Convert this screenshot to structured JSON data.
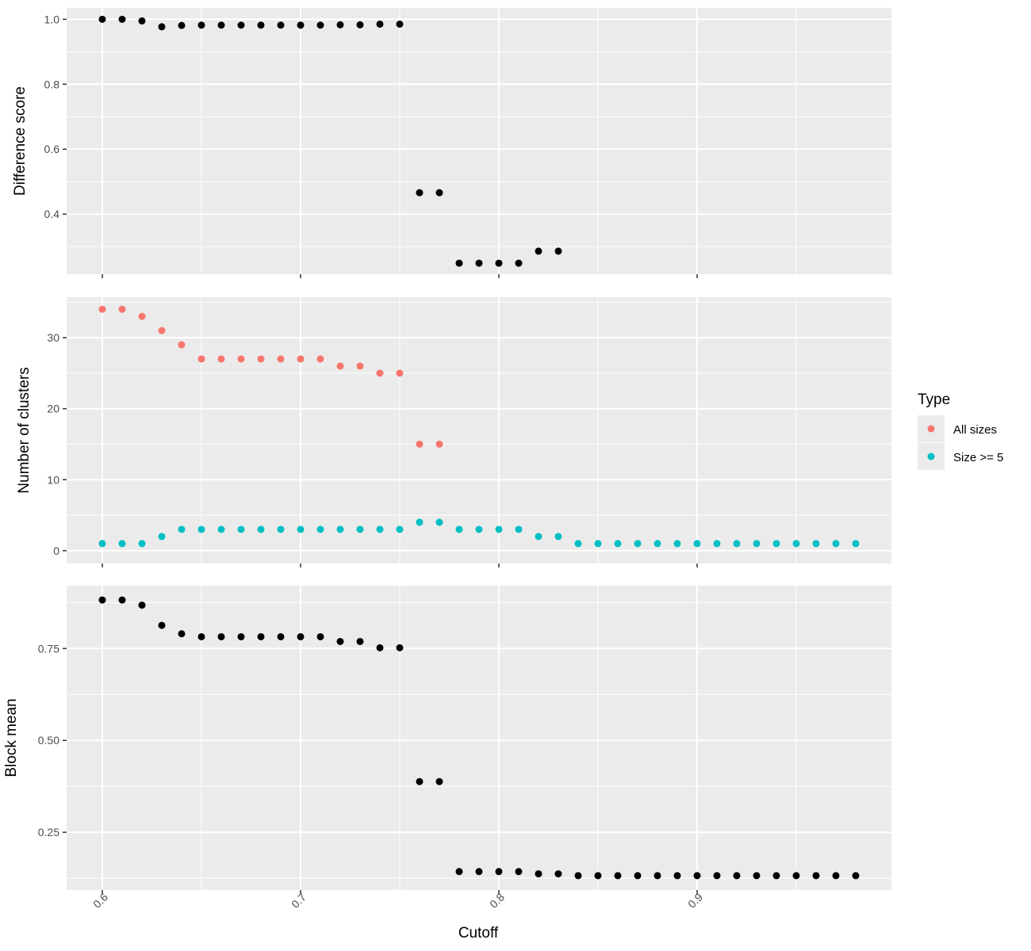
{
  "chart_data": {
    "type": "scatter",
    "xlabel": "Cutoff",
    "x_ticks": [
      0.6,
      0.7,
      0.8,
      0.9
    ],
    "x_tick_labels": [
      "0.6",
      "0.7",
      "0.8",
      "0.9"
    ],
    "xlim": [
      0.582,
      0.998
    ],
    "panels": [
      {
        "id": "difference",
        "ylabel": "Difference score",
        "ylim": [
          0.215,
          1.035
        ],
        "y_ticks": [
          0.4,
          0.6,
          0.8,
          1.0
        ],
        "y_tick_labels": [
          "0.4",
          "0.6",
          "0.8",
          "1.0"
        ],
        "series": [
          {
            "color": "#000000",
            "x": [
              0.6,
              0.61,
              0.62,
              0.63,
              0.64,
              0.65,
              0.66,
              0.67,
              0.68,
              0.69,
              0.7,
              0.71,
              0.72,
              0.73,
              0.74,
              0.75,
              0.76,
              0.77,
              0.78,
              0.79,
              0.8,
              0.81,
              0.82,
              0.83
            ],
            "y": [
              1.0,
              1.0,
              0.995,
              0.977,
              0.981,
              0.982,
              0.982,
              0.982,
              0.982,
              0.982,
              0.982,
              0.982,
              0.983,
              0.983,
              0.985,
              0.985,
              0.466,
              0.466,
              0.249,
              0.249,
              0.249,
              0.249,
              0.286,
              0.286
            ]
          }
        ]
      },
      {
        "id": "clusters",
        "ylabel": "Number of clusters",
        "ylim": [
          -1.8,
          35.7
        ],
        "y_ticks": [
          0,
          10,
          20,
          30
        ],
        "y_tick_labels": [
          "0",
          "10",
          "20",
          "30"
        ],
        "series": [
          {
            "name": "All sizes",
            "color": "#F8766D",
            "x": [
              0.6,
              0.61,
              0.62,
              0.63,
              0.64,
              0.65,
              0.66,
              0.67,
              0.68,
              0.69,
              0.7,
              0.71,
              0.72,
              0.73,
              0.74,
              0.75,
              0.76,
              0.77
            ],
            "y": [
              34,
              34,
              33,
              31,
              29,
              27,
              27,
              27,
              27,
              27,
              27,
              27,
              26,
              26,
              25,
              25,
              15,
              15
            ]
          },
          {
            "name": "Size >= 5",
            "color": "#00BFC4",
            "x": [
              0.6,
              0.61,
              0.62,
              0.63,
              0.64,
              0.65,
              0.66,
              0.67,
              0.68,
              0.69,
              0.7,
              0.71,
              0.72,
              0.73,
              0.74,
              0.75,
              0.76,
              0.77,
              0.78,
              0.79,
              0.8,
              0.81,
              0.82,
              0.83,
              0.84,
              0.85,
              0.86,
              0.87,
              0.88,
              0.89,
              0.9,
              0.91,
              0.92,
              0.93,
              0.94,
              0.95,
              0.96,
              0.97,
              0.98
            ],
            "y": [
              1,
              1,
              1,
              2,
              3,
              3,
              3,
              3,
              3,
              3,
              3,
              3,
              3,
              3,
              3,
              3,
              4,
              4,
              3,
              3,
              3,
              3,
              2,
              2,
              1,
              1,
              1,
              1,
              1,
              1,
              1,
              1,
              1,
              1,
              1,
              1,
              1,
              1,
              1
            ]
          }
        ]
      },
      {
        "id": "blockmean",
        "ylabel": "Block mean",
        "ylim": [
          0.093,
          0.921
        ],
        "y_ticks": [
          0.25,
          0.5,
          0.75
        ],
        "y_tick_labels": [
          "0.25",
          "0.50",
          "0.75"
        ],
        "series": [
          {
            "color": "#000000",
            "x": [
              0.6,
              0.61,
              0.62,
              0.63,
              0.64,
              0.65,
              0.66,
              0.67,
              0.68,
              0.69,
              0.7,
              0.71,
              0.72,
              0.73,
              0.74,
              0.75,
              0.76,
              0.77,
              0.78,
              0.79,
              0.8,
              0.81,
              0.82,
              0.83,
              0.84,
              0.85,
              0.86,
              0.87,
              0.88,
              0.89,
              0.9,
              0.91,
              0.92,
              0.93,
              0.94,
              0.95,
              0.96,
              0.97,
              0.98
            ],
            "y": [
              0.882,
              0.882,
              0.868,
              0.813,
              0.79,
              0.782,
              0.782,
              0.782,
              0.782,
              0.782,
              0.782,
              0.782,
              0.769,
              0.769,
              0.752,
              0.752,
              0.388,
              0.388,
              0.143,
              0.143,
              0.143,
              0.143,
              0.137,
              0.137,
              0.132,
              0.132,
              0.132,
              0.132,
              0.132,
              0.132,
              0.132,
              0.132,
              0.132,
              0.132,
              0.132,
              0.132,
              0.132,
              0.132,
              0.132
            ]
          }
        ]
      }
    ],
    "legend": {
      "title": "Type",
      "position": "right",
      "entries": [
        {
          "label": "All sizes",
          "color": "#F8766D"
        },
        {
          "label": "Size >= 5",
          "color": "#00BFC4"
        }
      ]
    },
    "grid": true,
    "panel_background": "#EBEBEB"
  }
}
